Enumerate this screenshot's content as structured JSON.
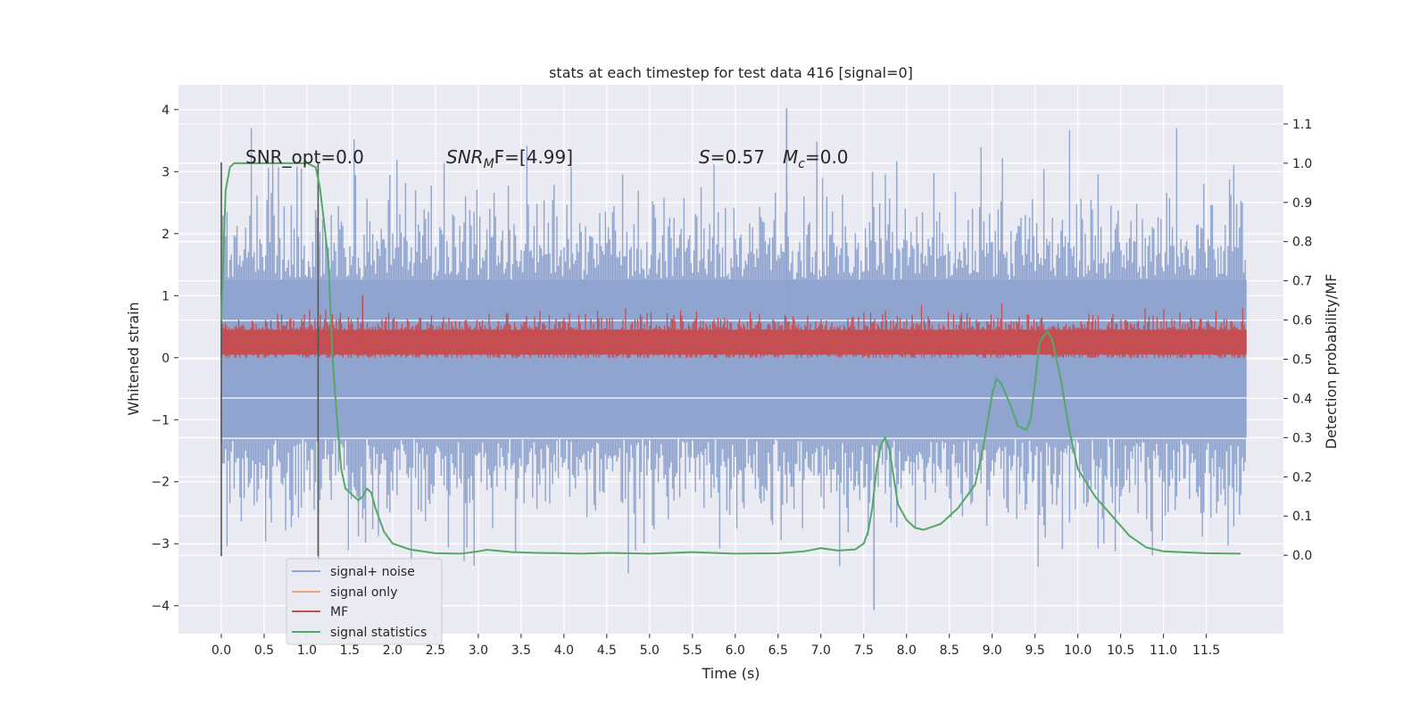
{
  "chart_data": {
    "type": "line",
    "title": "stats at each timestep for test data 416 [signal=0]",
    "xlabel": "Time (s)",
    "ylabel": "Whitened strain",
    "ylabel_right": "Detection probability/MF",
    "xlim": [
      -0.5,
      12.4
    ],
    "ylim": [
      -4.45,
      4.4
    ],
    "ylim_right": [
      -0.2,
      1.2
    ],
    "x_ticks": [
      "0.0",
      "0.5",
      "1.0",
      "1.5",
      "2.0",
      "2.5",
      "3.0",
      "3.5",
      "4.0",
      "4.5",
      "5.0",
      "5.5",
      "6.0",
      "6.5",
      "7.0",
      "7.5",
      "8.0",
      "8.5",
      "9.0",
      "9.5",
      "10.0",
      "10.5",
      "11.0",
      "11.5"
    ],
    "y_ticks": [
      "4",
      "3",
      "2",
      "1",
      "0",
      "−1",
      "−2",
      "−3",
      "−4"
    ],
    "y_ticks_right": [
      "1.1",
      "1.0",
      "0.9",
      "0.8",
      "0.7",
      "0.6",
      "0.5",
      "0.4",
      "0.3",
      "0.2",
      "0.1",
      "0.0"
    ],
    "grid": true,
    "legend_placement": "lower-left",
    "annotations": {
      "snr_opt": "SNR_opt=0.0",
      "snr_mf_prefix": "SNR",
      "snr_mf_sub": "M",
      "snr_mf_suffix": "F=[4.99]",
      "s_prefix": "S",
      "s_value": "=0.57",
      "mc_prefix": "M",
      "mc_sub": "c",
      "mc_value": "=0.0"
    },
    "vertical_lines": [
      0.0,
      1.13
    ],
    "series": [
      {
        "name": "signal+ noise",
        "color": "#8fa4cf",
        "envelope_upper": 1.25,
        "envelope_lower": -1.3,
        "peak_max": 4.02,
        "peak_min": -4.07,
        "x_range": [
          0.0,
          11.97
        ]
      },
      {
        "name": "signal only",
        "color": "#e8a583",
        "values": []
      },
      {
        "name": "MF",
        "color": "#c44e52",
        "band": [
          0.0,
          0.55
        ],
        "x_range": [
          0.0,
          11.97
        ]
      },
      {
        "name": "signal statistics",
        "color": "#55a868",
        "x": [
          0.0,
          0.05,
          0.1,
          0.15,
          0.2,
          0.3,
          0.5,
          0.8,
          1.0,
          1.1,
          1.15,
          1.2,
          1.25,
          1.3,
          1.35,
          1.4,
          1.45,
          1.5,
          1.6,
          1.65,
          1.7,
          1.75,
          1.8,
          1.9,
          2.0,
          2.2,
          2.5,
          2.8,
          3.0,
          3.1,
          3.2,
          3.4,
          3.7,
          4.0,
          4.2,
          4.5,
          5.0,
          5.5,
          6.0,
          6.5,
          6.8,
          7.0,
          7.2,
          7.4,
          7.5,
          7.55,
          7.6,
          7.65,
          7.7,
          7.75,
          7.8,
          7.85,
          7.9,
          8.0,
          8.1,
          8.2,
          8.4,
          8.6,
          8.8,
          8.9,
          9.0,
          9.05,
          9.1,
          9.2,
          9.3,
          9.4,
          9.45,
          9.5,
          9.55,
          9.6,
          9.65,
          9.7,
          9.8,
          9.9,
          10.0,
          10.2,
          10.4,
          10.6,
          10.8,
          11.0,
          11.5,
          11.9
        ],
        "y": [
          0.6,
          0.93,
          0.99,
          1.0,
          1.0,
          1.0,
          1.0,
          1.0,
          1.0,
          0.99,
          0.94,
          0.85,
          0.75,
          0.5,
          0.35,
          0.22,
          0.17,
          0.16,
          0.14,
          0.15,
          0.17,
          0.16,
          0.12,
          0.06,
          0.03,
          0.015,
          0.005,
          0.004,
          0.01,
          0.014,
          0.012,
          0.008,
          0.006,
          0.005,
          0.004,
          0.006,
          0.004,
          0.008,
          0.004,
          0.005,
          0.01,
          0.018,
          0.012,
          0.015,
          0.03,
          0.06,
          0.12,
          0.22,
          0.28,
          0.3,
          0.27,
          0.2,
          0.13,
          0.09,
          0.07,
          0.065,
          0.08,
          0.12,
          0.18,
          0.28,
          0.41,
          0.45,
          0.44,
          0.39,
          0.33,
          0.32,
          0.35,
          0.44,
          0.54,
          0.56,
          0.57,
          0.55,
          0.45,
          0.32,
          0.22,
          0.15,
          0.1,
          0.05,
          0.02,
          0.01,
          0.005,
          0.004
        ]
      }
    ]
  }
}
